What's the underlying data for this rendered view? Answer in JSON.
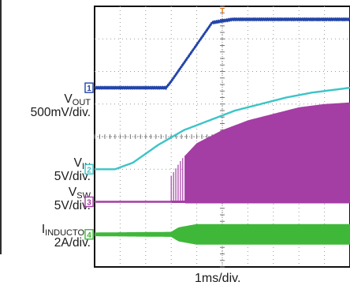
{
  "chart_data": {
    "type": "line",
    "x_axis": {
      "scale_label": "1ms/div.",
      "divisions": 10
    },
    "y_axis": {
      "divisions": 8
    },
    "trigger_marker": "T",
    "grid": true,
    "channels": [
      {
        "id": "1",
        "name": "V",
        "subscript": "OUT",
        "scale": "500mV/div.",
        "color": "#2344a8",
        "x_div": [
          0,
          2.8,
          3.0,
          4.6,
          5.4,
          10
        ],
        "y_div": [
          1.5,
          1.5,
          1.7,
          3.5,
          3.6,
          3.6
        ]
      },
      {
        "id": "2",
        "name": "V",
        "subscript": "IN",
        "scale": "5V/div.",
        "color": "#3cc4c8",
        "x_div": [
          0,
          0.8,
          1.5,
          2.5,
          3.5,
          4.5,
          5.5,
          6.5,
          7.5,
          8.5,
          10
        ],
        "y_div": [
          -1.0,
          -1.0,
          -0.8,
          -0.25,
          0.2,
          0.5,
          0.8,
          1.0,
          1.2,
          1.35,
          1.5
        ]
      },
      {
        "id": "3",
        "name": "V",
        "subscript": "SW",
        "scale": "5V/div.",
        "color": "#a43da4",
        "baseline_div": -2.0,
        "switching_start_div": 3.0,
        "envelope_x_div": [
          3.0,
          3.4,
          4.0,
          5.0,
          6.0,
          7.0,
          8.0,
          9.0,
          10
        ],
        "envelope_top_div": [
          -1.2,
          -0.7,
          -0.2,
          0.2,
          0.5,
          0.7,
          0.9,
          1.0,
          1.05
        ]
      },
      {
        "id": "4",
        "name": "I",
        "subscript": "INDUCTOR",
        "scale": "2A/div.",
        "color": "#3fb83a",
        "baseline_div": -3.0,
        "ripple_start_div": 3.0,
        "ripple_x_div": [
          0,
          3.0,
          3.3,
          4.0,
          5.0,
          6.0,
          7.0,
          8.0,
          10
        ],
        "ripple_amplitude_div": [
          0.04,
          0.06,
          0.2,
          0.3,
          0.3,
          0.3,
          0.3,
          0.3,
          0.3
        ]
      }
    ]
  }
}
